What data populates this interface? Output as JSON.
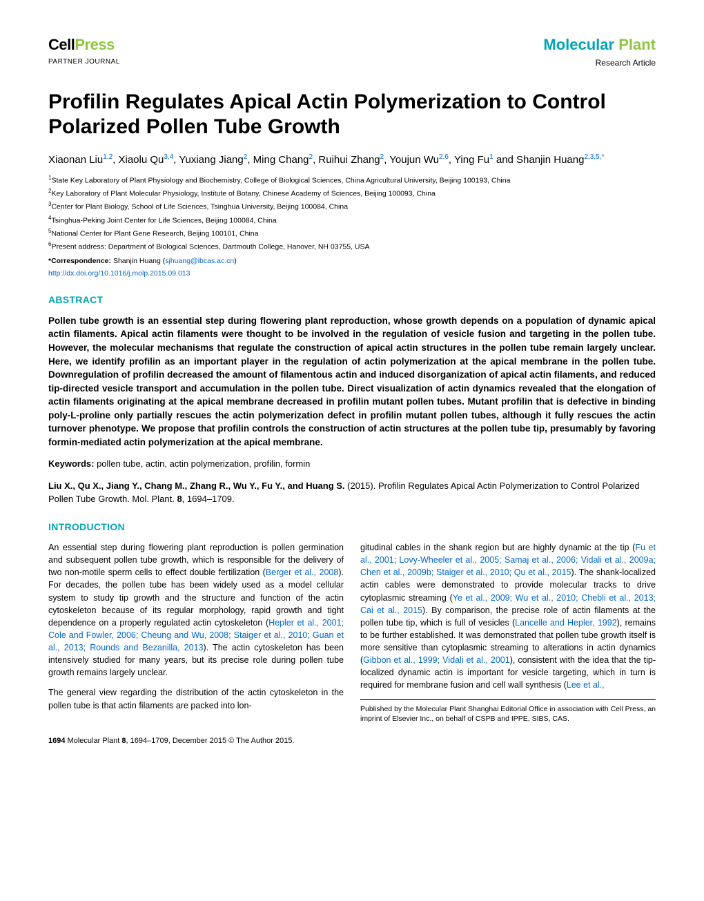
{
  "header": {
    "logo_cell": "Cell",
    "logo_press": "Press",
    "partner": "PARTNER JOURNAL",
    "mol": "Molecular ",
    "plant": "Plant",
    "article_type": "Research Article"
  },
  "title": "Profilin Regulates Apical Actin Polymerization to Control Polarized Pollen Tube Growth",
  "authors_html": "Xiaonan Liu<sup class='sup'>1,2</sup>, Xiaolu Qu<sup class='sup'>3,4</sup>, Yuxiang Jiang<sup class='sup'>2</sup>, Ming Chang<sup class='sup'>2</sup>, Ruihui Zhang<sup class='sup'>2</sup>, Youjun Wu<sup class='sup'>2,6</sup>, Ying Fu<sup class='sup'>1</sup> and Shanjin Huang<sup class='sup'>2,3,5,*</sup>",
  "affils": [
    {
      "n": "1",
      "t": "State Key Laboratory of Plant Physiology and Biochemistry, College of Biological Sciences, China Agricultural University, Beijing 100193, China"
    },
    {
      "n": "2",
      "t": "Key Laboratory of Plant Molecular Physiology, Institute of Botany, Chinese Academy of Sciences, Beijing 100093, China"
    },
    {
      "n": "3",
      "t": "Center for Plant Biology, School of Life Sciences, Tsinghua University, Beijing 100084, China"
    },
    {
      "n": "4",
      "t": "Tsinghua-Peking Joint Center for Life Sciences, Beijing 100084, China"
    },
    {
      "n": "5",
      "t": "National Center for Plant Gene Research, Beijing 100101, China"
    },
    {
      "n": "6",
      "t": "Present address: Department of Biological Sciences, Dartmouth College, Hanover, NH 03755, USA"
    }
  ],
  "corresp_label": "*Correspondence:",
  "corresp_name": " Shanjin Huang (",
  "corresp_email": "sjhuang@ibcas.ac.cn",
  "corresp_close": ")",
  "doi": "http://dx.doi.org/10.1016/j.molp.2015.09.013",
  "abstract_head": "ABSTRACT",
  "abstract": "Pollen tube growth is an essential step during flowering plant reproduction, whose growth depends on a population of dynamic apical actin filaments. Apical actin filaments were thought to be involved in the regulation of vesicle fusion and targeting in the pollen tube. However, the molecular mechanisms that regulate the construction of apical actin structures in the pollen tube remain largely unclear. Here, we identify profilin as an important player in the regulation of actin polymerization at the apical membrane in the pollen tube. Downregulation of profilin decreased the amount of filamentous actin and induced disorganization of apical actin filaments, and reduced tip-directed vesicle transport and accumulation in the pollen tube. Direct visualization of actin dynamics revealed that the elongation of actin filaments originating at the apical membrane decreased in profilin mutant pollen tubes. Mutant profilin that is defective in binding poly-L-proline only partially rescues the actin polymerization defect in profilin mutant pollen tubes, although it fully rescues the actin turnover phenotype. We propose that profilin controls the construction of actin structures at the pollen tube tip, presumably by favoring formin-mediated actin polymerization at the apical membrane.",
  "keywords_label": "Keywords:",
  "keywords": " pollen tube, actin, actin polymerization, profilin, formin",
  "citation": "Liu X., Qu X., Jiang Y., Chang M., Zhang R., Wu Y., Fu Y., and Huang S. (2015). Profilin Regulates Apical Actin Polymerization to Control Polarized Pollen Tube Growth. Mol. Plant. 8, 1694–1709.",
  "intro_head": "INTRODUCTION",
  "col_left": {
    "p1a": "An essential step during flowering plant reproduction is pollen germination and subsequent pollen tube growth, which is responsible for the delivery of two non-motile sperm cells to effect double fertilization (",
    "r1": "Berger et al., 2008",
    "p1b": "). For decades, the pollen tube has been widely used as a model cellular system to study tip growth and the structure and function of the actin cytoskeleton because of its regular morphology, rapid growth and tight dependence on a properly regulated actin cytoskeleton (",
    "r2": "Hepler et al., 2001; Cole and Fowler, 2006; Cheung and Wu, 2008; Staiger et al., 2010; Guan et al., 2013; Rounds and Bezanilla, 2013",
    "p1c": "). The actin cytoskeleton has been intensively studied for many years, but its precise role during pollen tube growth remains largely unclear.",
    "p2": "The general view regarding the distribution of the actin cytoskeleton in the pollen tube is that actin filaments are packed into lon-"
  },
  "col_right": {
    "p1a": "gitudinal cables in the shank region but are highly dynamic at the tip (",
    "r1": "Fu et al., 2001; Lovy-Wheeler et al., 2005; Samaj et al., 2006; Vidali et al., 2009a; Chen et al., 2009b; Staiger et al., 2010; Qu et al., 2015",
    "p1b": "). The shank-localized actin cables were demonstrated to provide molecular tracks to drive cytoplasmic streaming (",
    "r2": "Ye et al., 2009; Wu et al., 2010; Chebli et al., 2013; Cai et al., 2015",
    "p1c": "). By comparison, the precise role of actin filaments at the pollen tube tip, which is full of vesicles (",
    "r3": "Lancelle and Hepler, 1992",
    "p1d": "), remains to be further established. It was demonstrated that pollen tube growth itself is more sensitive than cytoplasmic streaming to alterations in actin dynamics (",
    "r4": "Gibbon et al., 1999; Vidali et al., 2001",
    "p1e": "), consistent with the idea that the tip-localized dynamic actin is important for vesicle targeting, which in turn is required for membrane fusion and cell wall synthesis (",
    "r5": "Lee et al.,",
    "pubnote": "Published by the Molecular Plant Shanghai Editorial Office in association with Cell Press, an imprint of Elsevier Inc., on behalf of CSPB and IPPE, SIBS, CAS."
  },
  "footer": {
    "page": "1694",
    "journal": "   Molecular Plant ",
    "vol": "8",
    "pages": ", 1694–1709, December 2015 © The Author 2015."
  },
  "colors": {
    "teal": "#00a5b5",
    "green": "#8fc640",
    "link": "#0066cc",
    "text": "#000000",
    "bg": "#ffffff"
  }
}
